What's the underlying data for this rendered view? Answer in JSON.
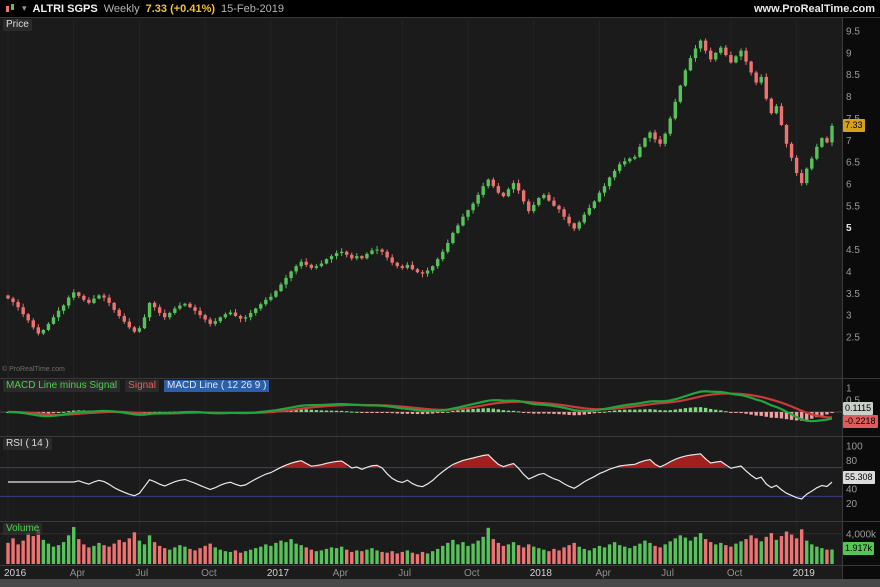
{
  "topbar": {
    "symbol": "ALTRI SGPS",
    "timeframe": "Weekly",
    "last": "7.33 (+0.41%)",
    "date": "15-Feb-2019",
    "website": "www.ProRealTime.com"
  },
  "watermark": "© ProRealTime.com",
  "panels": {
    "price": {
      "label": "Price",
      "value": "7.33"
    },
    "macd": {
      "label_hist": "MACD Line minus Signal",
      "label_signal": "Signal",
      "label_macd": "MACD Line ( 12 26 9 )",
      "value_hist": "0.1115",
      "value_macd": "-0.2218"
    },
    "rsi": {
      "label": "RSI ( 14 )",
      "value": "55.308"
    },
    "volume": {
      "label": "Volume",
      "value": "1.917k"
    }
  },
  "colors": {
    "up": "#57c15b",
    "down": "#ee7272",
    "macd": "#1fa73d",
    "signal": "#c93b3b",
    "hist_up": "#7ddc7d",
    "hist_down": "#f0a0a0",
    "rsi": "#e8e8e8",
    "rsi_over": "#a21f1f"
  },
  "time_axis": [
    {
      "label": "2016",
      "week": 0
    },
    {
      "label": "Apr",
      "week": 13
    },
    {
      "label": "Jul",
      "week": 26
    },
    {
      "label": "Oct",
      "week": 39
    },
    {
      "label": "2017",
      "week": 52
    },
    {
      "label": "Apr",
      "week": 65
    },
    {
      "label": "Jul",
      "week": 78
    },
    {
      "label": "Oct",
      "week": 91
    },
    {
      "label": "2018",
      "week": 104
    },
    {
      "label": "Apr",
      "week": 117
    },
    {
      "label": "Jul",
      "week": 130
    },
    {
      "label": "Oct",
      "week": 143
    },
    {
      "label": "2019",
      "week": 156
    }
  ],
  "chart_data": {
    "type": "candlestick",
    "symbol": "ALTRI SGPS",
    "interval": "weekly",
    "x_range": [
      "Jan 2016",
      "15-Feb-2019"
    ],
    "indicators": {
      "macd": [
        12,
        26,
        9
      ],
      "rsi": [
        14
      ]
    },
    "last": {
      "price": 7.33,
      "change_pct": 0.41,
      "macd_hist": 0.1115,
      "macd_line": -0.2218,
      "rsi": 55.308,
      "volume_k": 1917
    },
    "axes": {
      "price_ticks": [
        9.5,
        9,
        8.5,
        8,
        7.5,
        7,
        6.5,
        6,
        5.5,
        5,
        4.5,
        4,
        3.5,
        3,
        2.5
      ],
      "macd_ticks": [
        1,
        0.5,
        0
      ],
      "rsi_ticks": [
        100,
        80,
        40,
        20
      ],
      "rsi_guides": [
        70,
        30
      ],
      "volume_ticks": [
        {
          "value": 4000,
          "label": "4,000k"
        }
      ]
    },
    "closes": [
      3.38,
      3.3,
      3.18,
      3.02,
      2.88,
      2.72,
      2.58,
      2.66,
      2.8,
      2.95,
      3.1,
      3.22,
      3.4,
      3.52,
      3.44,
      3.35,
      3.28,
      3.38,
      3.45,
      3.4,
      3.28,
      3.12,
      2.98,
      2.85,
      2.72,
      2.62,
      2.7,
      2.95,
      3.28,
      3.18,
      3.05,
      2.95,
      3.05,
      3.15,
      3.22,
      3.26,
      3.18,
      3.1,
      3.0,
      2.9,
      2.8,
      2.86,
      2.95,
      3.02,
      3.06,
      2.98,
      2.92,
      2.95,
      3.05,
      3.15,
      3.25,
      3.35,
      3.42,
      3.55,
      3.7,
      3.85,
      4.0,
      4.12,
      4.22,
      4.15,
      4.08,
      4.12,
      4.18,
      4.28,
      4.35,
      4.42,
      4.45,
      4.38,
      4.3,
      4.35,
      4.3,
      4.4,
      4.48,
      4.5,
      4.45,
      4.32,
      4.2,
      4.12,
      4.08,
      4.15,
      4.05,
      3.98,
      3.95,
      4.02,
      4.12,
      4.28,
      4.45,
      4.65,
      4.88,
      5.05,
      5.25,
      5.4,
      5.55,
      5.75,
      5.95,
      6.1,
      5.95,
      5.8,
      5.72,
      5.88,
      6.02,
      5.85,
      5.6,
      5.38,
      5.52,
      5.68,
      5.75,
      5.62,
      5.5,
      5.42,
      5.25,
      5.1,
      4.98,
      5.12,
      5.3,
      5.45,
      5.6,
      5.8,
      5.95,
      6.15,
      6.3,
      6.45,
      6.52,
      6.58,
      6.62,
      6.85,
      7.05,
      7.18,
      7.02,
      6.92,
      7.15,
      7.5,
      7.88,
      8.25,
      8.6,
      8.88,
      9.1,
      9.28,
      9.05,
      8.85,
      9.0,
      9.12,
      8.95,
      8.78,
      8.92,
      9.05,
      8.8,
      8.55,
      8.32,
      8.45,
      7.95,
      7.62,
      7.78,
      7.35,
      6.92,
      6.6,
      6.25,
      6.02,
      6.35,
      6.58,
      6.85,
      7.05,
      6.95,
      7.33
    ],
    "volumes_k": [
      2800,
      3400,
      2600,
      3100,
      4100,
      3700,
      4600,
      3200,
      2700,
      2300,
      2500,
      2900,
      3800,
      4900,
      3300,
      2600,
      2200,
      2400,
      2800,
      2500,
      2300,
      2700,
      3200,
      2900,
      3400,
      4200,
      3100,
      2600,
      3800,
      2900,
      2400,
      2100,
      1900,
      2200,
      2500,
      2300,
      2000,
      1800,
      2100,
      2400,
      2700,
      2200,
      1900,
      1700,
      1600,
      1800,
      1500,
      1700,
      1900,
      2100,
      2300,
      2600,
      2400,
      2800,
      3100,
      2900,
      3300,
      2700,
      2500,
      2200,
      1900,
      1700,
      1800,
      2000,
      2200,
      2100,
      2300,
      1900,
      1600,
      1800,
      1700,
      1900,
      2100,
      1800,
      1600,
      1500,
      1700,
      1400,
      1600,
      1800,
      1500,
      1300,
      1600,
      1400,
      1700,
      2000,
      2400,
      2800,
      3200,
      2600,
      2900,
      2400,
      2700,
      3100,
      3600,
      4800,
      3300,
      2800,
      2400,
      2600,
      2900,
      2500,
      2200,
      2600,
      2300,
      2100,
      1900,
      1700,
      2000,
      1800,
      2200,
      2500,
      2800,
      2300,
      2000,
      1800,
      2100,
      2400,
      2200,
      2600,
      2900,
      2500,
      2300,
      2100,
      2400,
      2700,
      3100,
      2800,
      2400,
      2200,
      2600,
      3000,
      3400,
      3800,
      3500,
      3100,
      3600,
      4100,
      3300,
      2900,
      2600,
      2800,
      2500,
      2300,
      2700,
      3000,
      3300,
      3800,
      3400,
      3000,
      3600,
      4100,
      3200,
      3700,
      4300,
      3900,
      3400,
      4600,
      3100,
      2600,
      2300,
      2100,
      1900,
      1917
    ]
  }
}
